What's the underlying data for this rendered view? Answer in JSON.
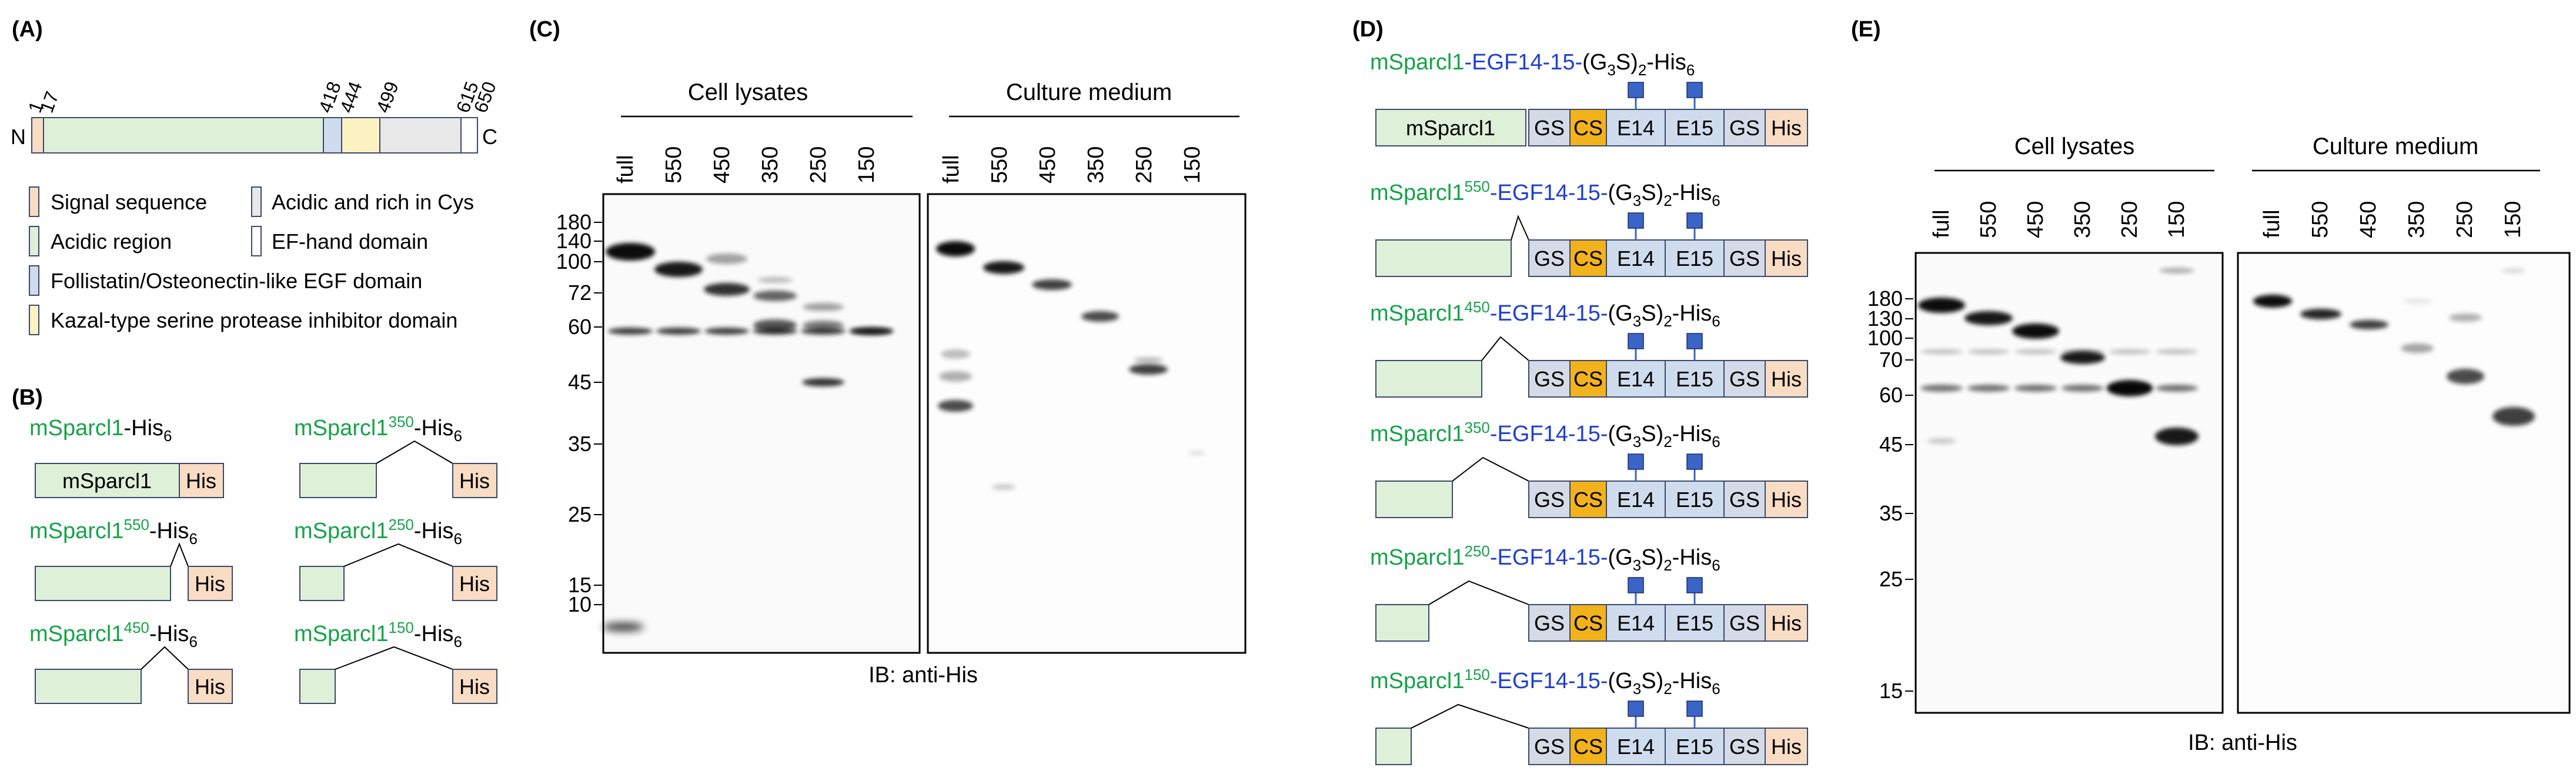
{
  "panel_labels": {
    "a": "(A)",
    "b": "(B)",
    "c": "(C)",
    "d": "(D)",
    "e": "(E)"
  },
  "colors": {
    "signal": "#f9dcc4",
    "acidic": "#dff0d8",
    "egf": "#cfdcee",
    "kazal": "#fdf2c2",
    "cys": "#e8e8e8",
    "his": "#f9dcc4",
    "gs": "#d5dbe6",
    "cs": "#f2b21c",
    "glyco": "#3b64c7",
    "green_text": "#16a34a",
    "blue_text": "#1f3fd1",
    "outline": "#3a4a6b"
  },
  "panel_a": {
    "n_label": "N",
    "c_label": "C",
    "positions": [
      "1",
      "17",
      "418",
      "444",
      "499",
      "615",
      "650"
    ],
    "legend": {
      "signal": "Signal sequence",
      "acidic": "Acidic region",
      "egf": "Follistatin/Osteonectin-like EGF domain",
      "kazal": "Kazal-type serine protease inhibitor domain",
      "cys": "Acidic and rich in Cys",
      "efhand": "EF-hand domain"
    }
  },
  "panel_b": {
    "constructs": [
      {
        "prefix": "mSparcl1",
        "sup": "",
        "suffix": "-His",
        "sub": "6",
        "box": "mSparcl1",
        "tag": "His"
      },
      {
        "prefix": "mSparcl1",
        "sup": "550",
        "suffix": "-His",
        "sub": "6",
        "tag": "His"
      },
      {
        "prefix": "mSparcl1",
        "sup": "450",
        "suffix": "-His",
        "sub": "6",
        "tag": "His"
      },
      {
        "prefix": "mSparcl1",
        "sup": "350",
        "suffix": "-His",
        "sub": "6",
        "tag": "His"
      },
      {
        "prefix": "mSparcl1",
        "sup": "250",
        "suffix": "-His",
        "sub": "6",
        "tag": "His"
      },
      {
        "prefix": "mSparcl1",
        "sup": "150",
        "suffix": "-His",
        "sub": "6",
        "tag": "His"
      }
    ]
  },
  "panel_c": {
    "group1": "Cell lysates",
    "group2": "Culture medium",
    "lanes": [
      "full",
      "550",
      "450",
      "350",
      "250",
      "150"
    ],
    "mw_markers": [
      "180",
      "140",
      "100",
      "72",
      "60",
      "45",
      "35",
      "25",
      "15",
      "10"
    ],
    "caption": "IB: anti-His"
  },
  "panel_d": {
    "constructs": [
      {
        "prefix": "mSparcl1",
        "sup": "",
        "box": "mSparcl1"
      },
      {
        "prefix": "mSparcl1",
        "sup": "550"
      },
      {
        "prefix": "mSparcl1",
        "sup": "450"
      },
      {
        "prefix": "mSparcl1",
        "sup": "350"
      },
      {
        "prefix": "mSparcl1",
        "sup": "250"
      },
      {
        "prefix": "mSparcl1",
        "sup": "150"
      }
    ],
    "fusion": "-EGF14-15-",
    "linker_open": "(G",
    "linker_sub3": "3",
    "linker_mid": "S)",
    "linker_sub2": "2",
    "his_tail": "-His",
    "his_sub": "6",
    "boxes": {
      "gs": "GS",
      "cs": "CS",
      "e14": "E14",
      "e15": "E15",
      "his": "His"
    }
  },
  "panel_e": {
    "group1": "Cell lysates",
    "group2": "Culture medium",
    "lanes": [
      "full",
      "550",
      "450",
      "350",
      "250",
      "150"
    ],
    "mw_markers": [
      "180",
      "130",
      "100",
      "70",
      "60",
      "45",
      "35",
      "25",
      "15"
    ],
    "caption": "IB: anti-His"
  }
}
